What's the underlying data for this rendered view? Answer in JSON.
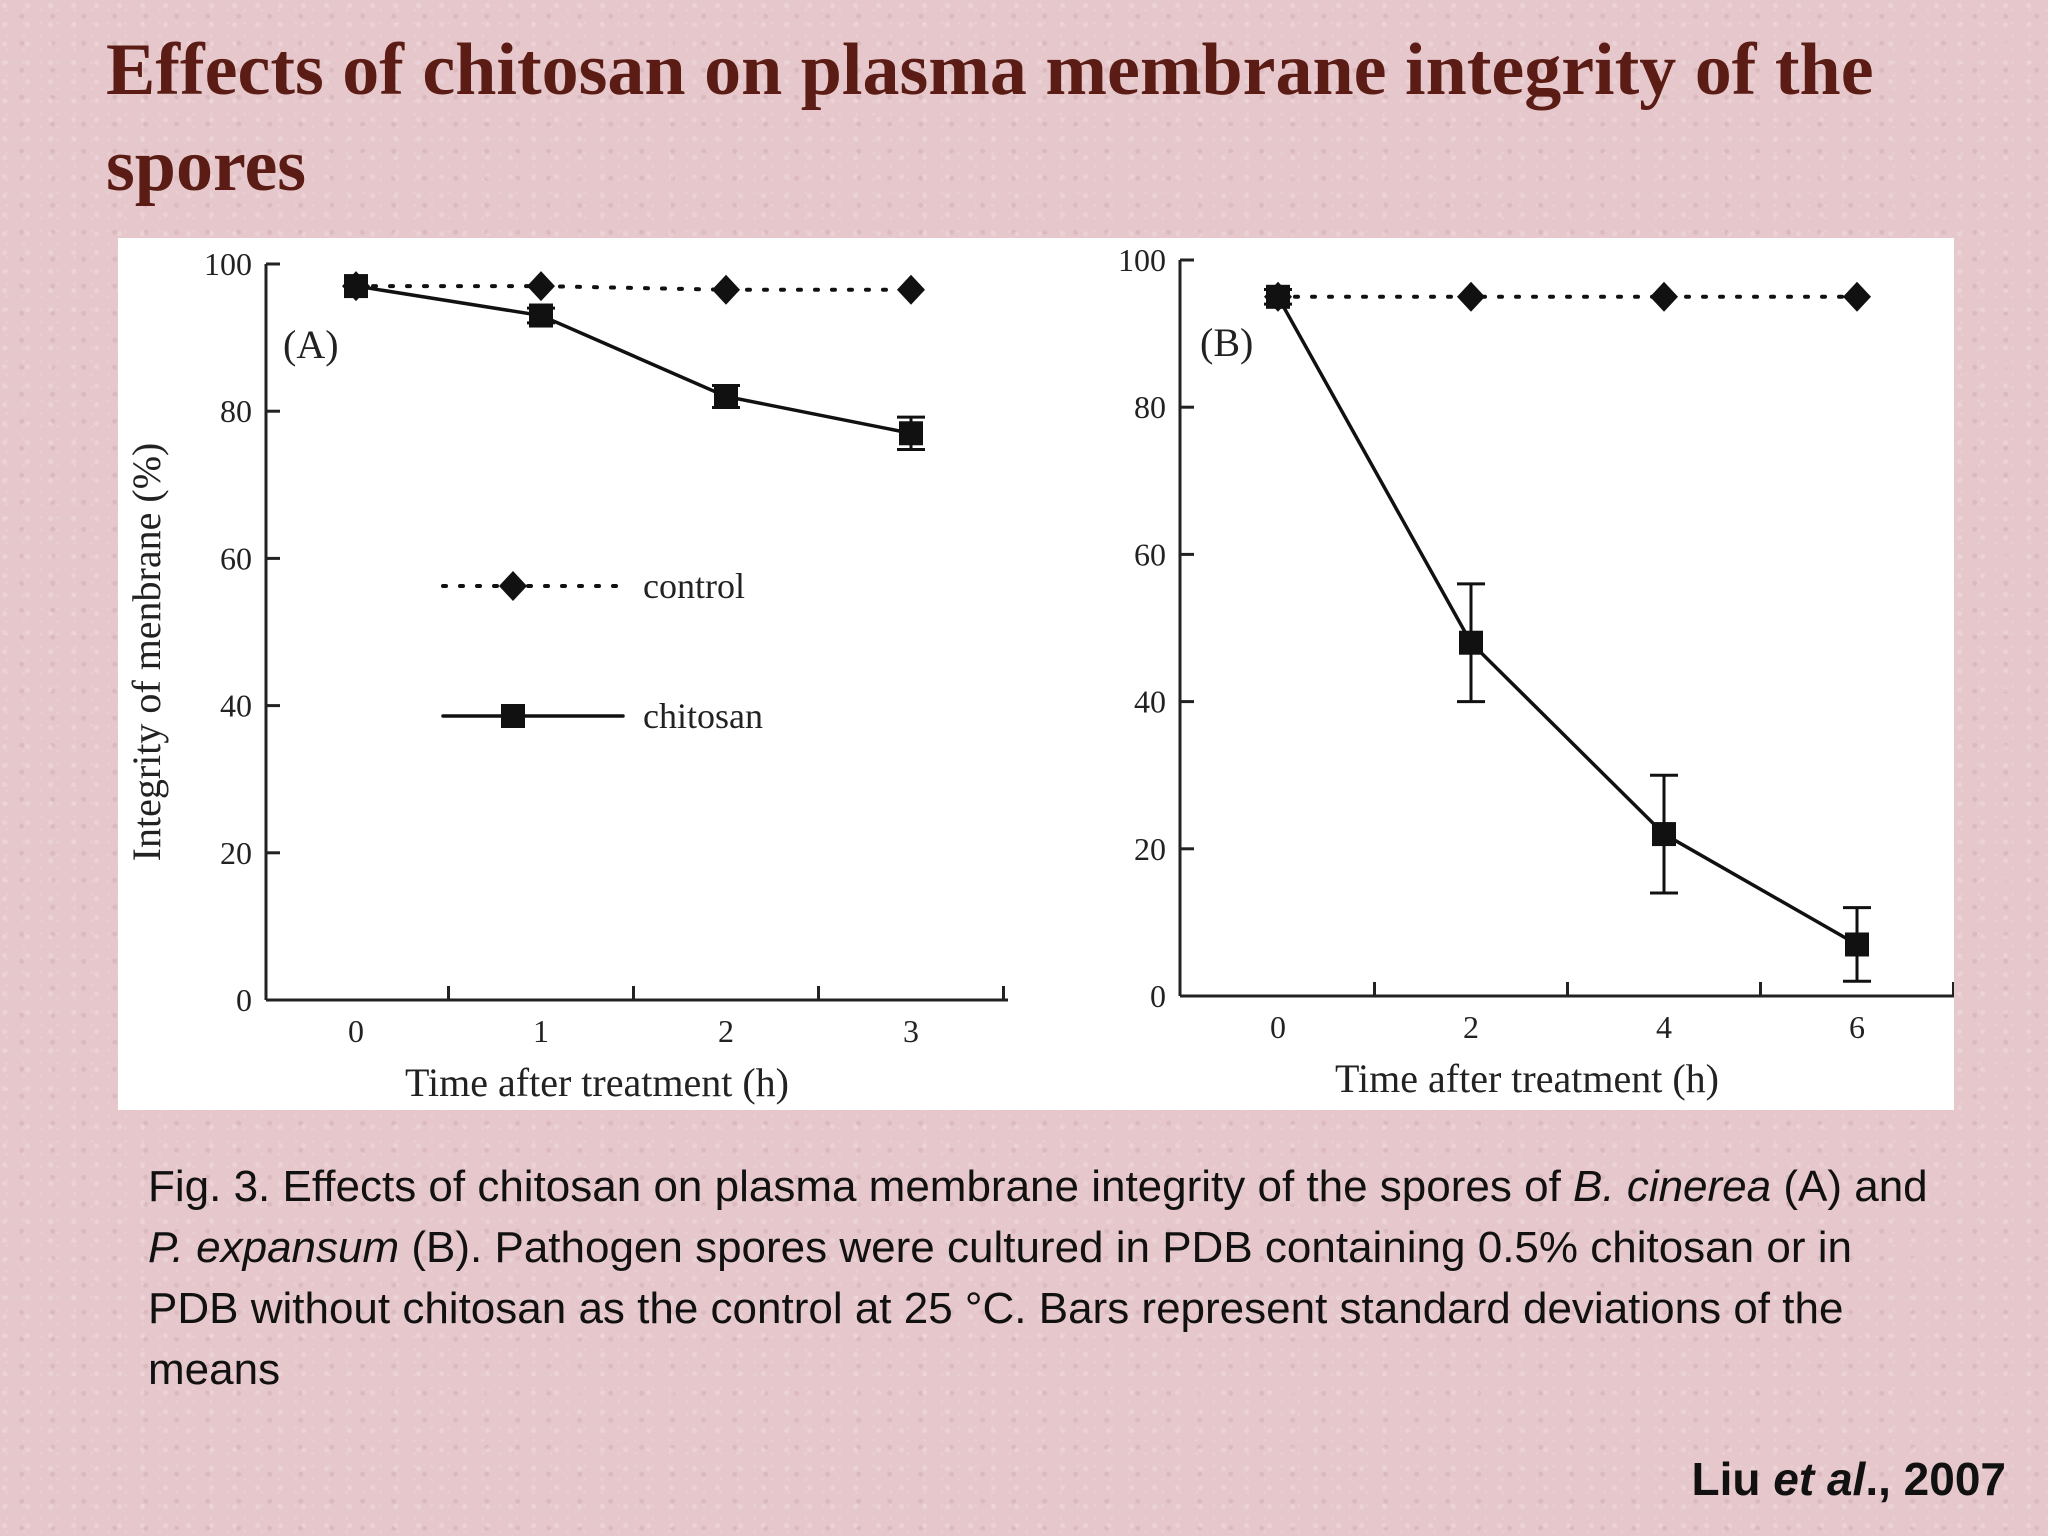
{
  "title": "Effects of chitosan on plasma membrane integrity of the spores",
  "chart_data": [
    {
      "type": "line",
      "panel_label": "(A)",
      "xlabel": "Time after treatment (h)",
      "ylabel": "Integrity of menbrane (%)",
      "x": [
        0,
        1,
        2,
        3
      ],
      "xlim": [
        0,
        3.5
      ],
      "xticks": [
        0,
        1,
        2,
        3
      ],
      "ylim": [
        0,
        100
      ],
      "yticks": [
        0,
        20,
        40,
        60,
        80,
        100
      ],
      "grid": false,
      "series": [
        {
          "name": "control",
          "style": "dotted",
          "marker": "diamond",
          "values": [
            97,
            97,
            96.5,
            96.5
          ],
          "errors": [
            0.5,
            0.5,
            0.5,
            0.5
          ]
        },
        {
          "name": "chitosan",
          "style": "solid",
          "marker": "square",
          "values": [
            97,
            93,
            82,
            77
          ],
          "errors": [
            0.8,
            1,
            1.5,
            2.2
          ]
        }
      ],
      "legend": {
        "placement": "center-left"
      }
    },
    {
      "type": "line",
      "panel_label": "(B)",
      "xlabel": "Time after treatment (h)",
      "ylabel": "",
      "x": [
        0,
        2,
        4,
        6
      ],
      "xlim": [
        0,
        7
      ],
      "xticks": [
        0,
        2,
        4,
        6
      ],
      "ylim": [
        0,
        100
      ],
      "yticks": [
        0,
        20,
        40,
        60,
        80,
        100
      ],
      "grid": false,
      "series": [
        {
          "name": "control",
          "style": "dotted",
          "marker": "diamond",
          "values": [
            95,
            95,
            95,
            95
          ],
          "errors": [
            0.5,
            0.5,
            0.5,
            0.5
          ]
        },
        {
          "name": "chitosan",
          "style": "solid",
          "marker": "square",
          "values": [
            95,
            48,
            22,
            7
          ],
          "errors": [
            1,
            8,
            8,
            5
          ]
        }
      ]
    }
  ],
  "caption": {
    "p1": "Fig. 3. Effects of chitosan on plasma membrane integrity of the spores of ",
    "i1": "B. cinerea",
    "p2": " (A) and ",
    "i2": "P. expansum",
    "p3": " (B). Pathogen spores were cultured in PDB containing 0.5% chitosan or in PDB without chitosan as the control at 25 °C. Bars represent standard deviations of the means"
  },
  "citation": {
    "author": "Liu ",
    "etal": "et al",
    "year": "., 2007"
  }
}
